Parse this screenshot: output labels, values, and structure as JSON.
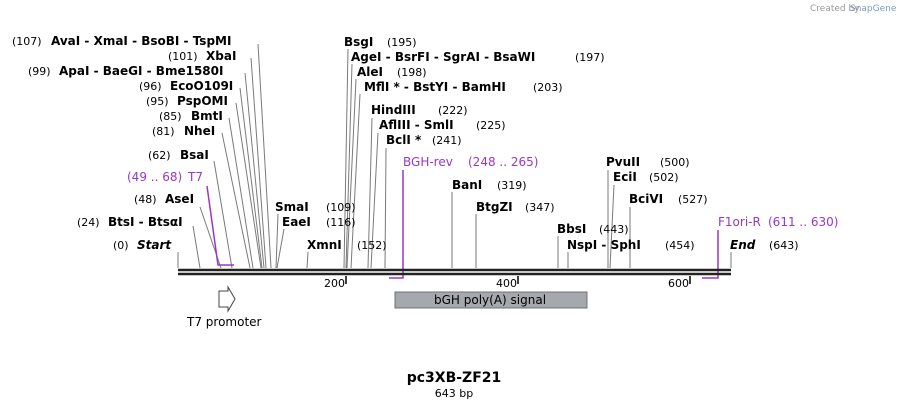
{
  "credit": {
    "text": "Created by",
    "brand": "SnapGene"
  },
  "title": "pc3XB-ZF21",
  "length_label": "643 bp",
  "axis": {
    "ticks": [
      "200",
      "400",
      "600"
    ]
  },
  "enzyme_rows": [
    {
      "pos": "(0)",
      "label": "Start",
      "style": "italic"
    },
    {
      "pos": "(24)",
      "label": "BtsI  -  BtsαI",
      "style": "bold"
    },
    {
      "pos": "(48)",
      "label": "AseI",
      "style": "bold"
    },
    {
      "pos": "(62)",
      "label": "BsaI",
      "style": "bold"
    },
    {
      "pos": "(81)",
      "label": "NheI",
      "style": "bold"
    },
    {
      "pos": "(85)",
      "label": "BmtI",
      "style": "bold"
    },
    {
      "pos": "(95)",
      "label": "PspOMI",
      "style": "bold"
    },
    {
      "pos": "(96)",
      "label": "EcoO109I",
      "style": "bold"
    },
    {
      "pos": "(99)",
      "label": "ApaI  -  BaeGI  -  Bme1580I",
      "style": "bold"
    },
    {
      "pos": "(101)",
      "label": "XbaI",
      "style": "bold"
    },
    {
      "pos": "(107)",
      "label": "AvaI  -  XmaI  -  BsoBI  -  TspMI",
      "style": "bold"
    },
    {
      "pos": "(109)",
      "label": "SmaI",
      "style": "bold"
    },
    {
      "pos": "(116)",
      "label": "EaeI",
      "style": "bold"
    },
    {
      "pos": "(152)",
      "label": "XmnI",
      "style": "bold"
    },
    {
      "pos": "(195)",
      "label": "BsgI",
      "style": "bold"
    },
    {
      "pos": "(197)",
      "label": "AgeI  -  BsrFI  -  SgrAI  -  BsaWI",
      "style": "bold"
    },
    {
      "pos": "(198)",
      "label": "AleI",
      "style": "bold"
    },
    {
      "pos": "(203)",
      "label": "MflI *  -  BstYI  -  BamHI",
      "style": "bold"
    },
    {
      "pos": "(222)",
      "label": "HindIII",
      "style": "bold"
    },
    {
      "pos": "(225)",
      "label": "AflIII  -  SmlI",
      "style": "bold"
    },
    {
      "pos": "(241)",
      "label": "BclI *",
      "style": "bold"
    },
    {
      "pos": "(319)",
      "label": "BanI",
      "style": "bold"
    },
    {
      "pos": "(347)",
      "label": "BtgZI",
      "style": "bold"
    },
    {
      "pos": "(443)",
      "label": "BbsI",
      "style": "bold"
    },
    {
      "pos": "(454)",
      "label": "NspI  -  SphI",
      "style": "bold"
    },
    {
      "pos": "(500)",
      "label": "PvuII",
      "style": "bold"
    },
    {
      "pos": "(502)",
      "label": "EciI",
      "style": "bold"
    },
    {
      "pos": "(527)",
      "label": "BciVI",
      "style": "bold"
    },
    {
      "pos": "(643)",
      "label": "End",
      "style": "italic"
    }
  ],
  "primers": [
    {
      "name": "T7",
      "range": "(49 .. 68)",
      "color": "#9a36c8"
    },
    {
      "name": "BGH-rev",
      "range": "(248 .. 265)",
      "color": "#9a36c8"
    },
    {
      "name": "F1ori-R",
      "range": "(611 .. 630)",
      "color": "#9a36c8"
    }
  ],
  "features": [
    {
      "name": "T7 promoter",
      "kind": "promoter"
    },
    {
      "name": "bGH poly(A) signal",
      "kind": "polyA",
      "color": "#a5a9ad"
    }
  ]
}
